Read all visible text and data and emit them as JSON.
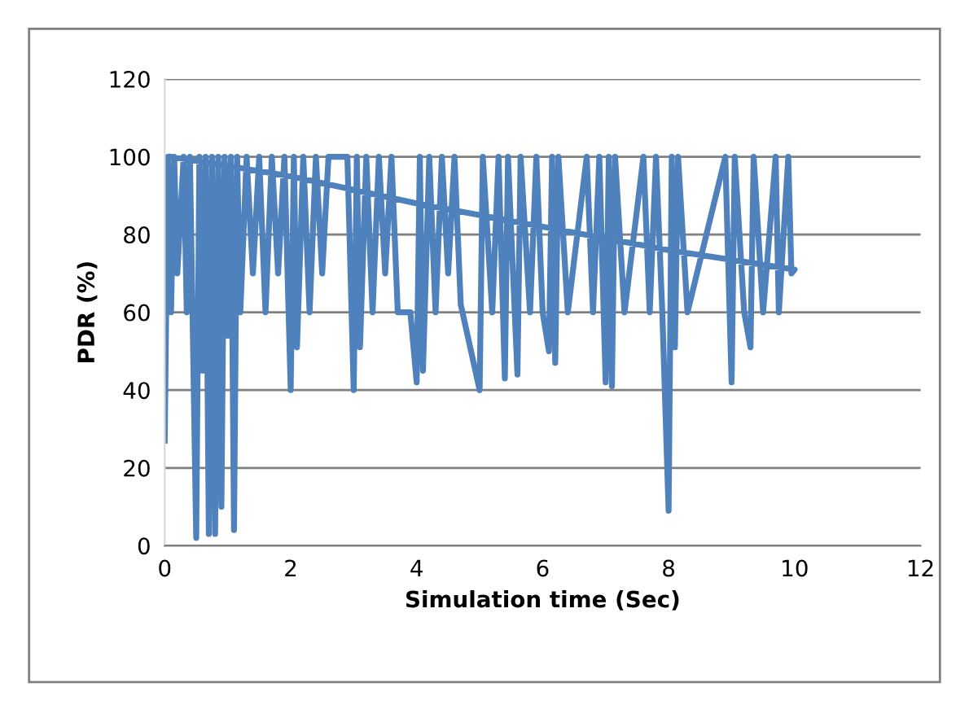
{
  "chart_data": {
    "type": "line",
    "xlabel": "Simulation time (Sec)",
    "ylabel": "PDR (%)",
    "xlim": [
      0,
      12
    ],
    "xticks": [
      0,
      2,
      4,
      6,
      8,
      10,
      12
    ],
    "ylim": [
      0,
      120
    ],
    "yticks": [
      0,
      20,
      40,
      60,
      80,
      100,
      120
    ],
    "grid": "y",
    "marker": "none",
    "line_style": "solid",
    "series": [
      {
        "color": "#4f81bd",
        "x": [
          0.0,
          0.05,
          0.1,
          0.15,
          0.2,
          0.3,
          0.35,
          0.4,
          0.5,
          0.55,
          0.6,
          0.65,
          0.7,
          0.75,
          0.8,
          0.85,
          0.9,
          0.95,
          1.0,
          1.05,
          1.1,
          1.15,
          1.2,
          1.3,
          1.4,
          1.5,
          1.6,
          1.7,
          1.8,
          1.9,
          2.0,
          2.05,
          2.1,
          2.2,
          2.3,
          2.4,
          2.5,
          2.6,
          2.9,
          3.0,
          3.05,
          3.1,
          3.2,
          3.3,
          3.4,
          3.5,
          3.6,
          3.7,
          3.9,
          4.0,
          4.05,
          4.1,
          4.2,
          4.3,
          4.4,
          4.5,
          4.6,
          4.7,
          5.0,
          5.05,
          5.2,
          5.3,
          5.4,
          5.45,
          5.6,
          5.65,
          5.8,
          5.9,
          6.0,
          6.1,
          6.15,
          6.2,
          6.25,
          6.4,
          6.7,
          6.8,
          6.9,
          7.0,
          7.05,
          7.1,
          7.15,
          7.3,
          7.6,
          7.7,
          7.8,
          7.9,
          8.0,
          8.05,
          8.1,
          8.15,
          8.3,
          8.9,
          9.0,
          9.05,
          9.2,
          9.3,
          9.35,
          9.5,
          9.7,
          9.75,
          9.9,
          9.95,
          10.0,
          8.0,
          6.0,
          4.0,
          2.0,
          0.1
        ],
        "values": [
          27,
          100,
          60,
          100,
          70,
          100,
          60,
          100,
          2,
          100,
          45,
          100,
          3,
          100,
          3,
          100,
          10,
          100,
          54,
          100,
          4,
          100,
          60,
          100,
          70,
          100,
          60,
          100,
          70,
          100,
          40,
          100,
          51,
          100,
          60,
          100,
          70,
          100,
          100,
          40,
          100,
          51,
          100,
          60,
          100,
          70,
          100,
          60,
          60,
          42,
          100,
          45,
          100,
          60,
          100,
          70,
          100,
          62,
          40,
          100,
          60,
          100,
          43,
          100,
          44,
          100,
          60,
          100,
          60,
          50,
          100,
          47,
          100,
          60,
          100,
          60,
          100,
          42,
          100,
          41,
          100,
          60,
          100,
          60,
          100,
          60,
          9,
          100,
          51,
          100,
          60,
          100,
          42,
          100,
          60,
          51,
          100,
          60,
          100,
          60,
          100,
          70,
          71,
          76,
          82,
          88,
          95,
          100
        ]
      }
    ]
  }
}
